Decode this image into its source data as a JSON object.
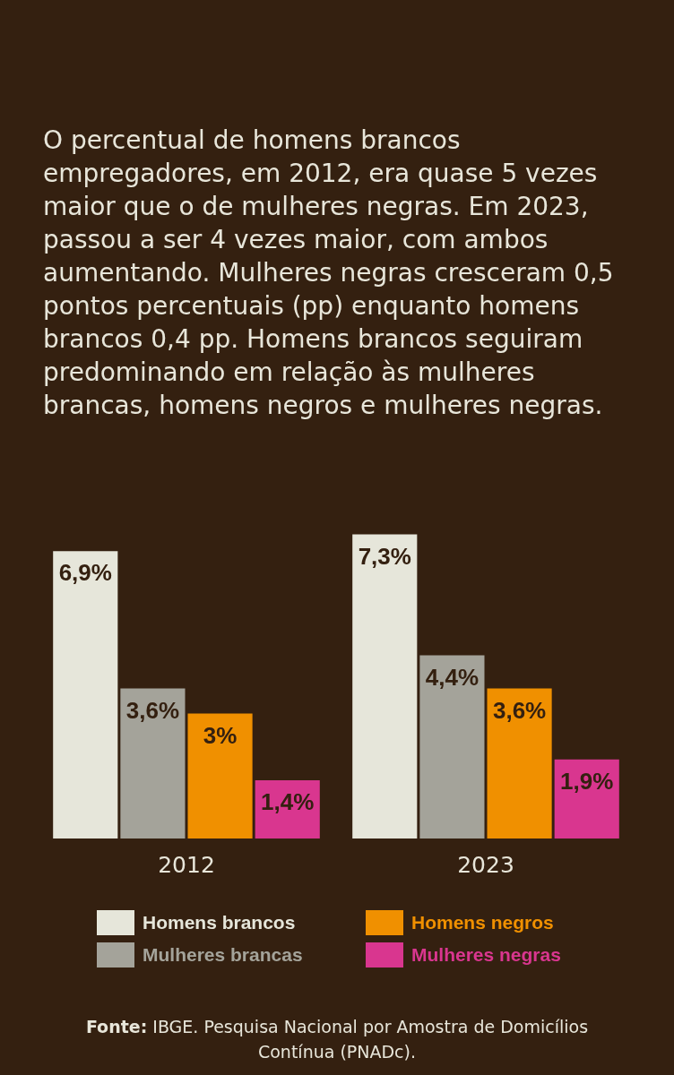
{
  "chart_data": {
    "type": "bar",
    "title": "O percentual de homens brancos empregadores, em 2012, era quase 5 vezes maior que o de mulheres negras. Em 2023, passou a ser 4 vezes maior, com ambos aumentando. Mulheres negras cresceram 0,5 pontos percentuais (pp) enquanto homens brancos 0,4 pp. Homens brancos seguiram predominando em relação às mulheres brancas, homens negros e mulheres negras.",
    "categories": [
      "2012",
      "2023"
    ],
    "series": [
      {
        "name": "Homens brancos",
        "color": "#e6e6da",
        "values": [
          6.9,
          7.3
        ],
        "value_labels": [
          "6,9%",
          "7,3%"
        ]
      },
      {
        "name": "Mulheres brancas",
        "color": "#a4a39a",
        "values": [
          3.6,
          4.4
        ],
        "value_labels": [
          "3,6%",
          "4,4%"
        ]
      },
      {
        "name": "Homens negros",
        "color": "#f09000",
        "values": [
          3,
          3.6
        ],
        "value_labels": [
          "3%",
          "3,6%"
        ]
      },
      {
        "name": "Mulheres negras",
        "color": "#d9368f",
        "values": [
          1.4,
          1.9
        ],
        "value_labels": [
          "1,4%",
          "1,9%"
        ]
      }
    ],
    "legend": "bottom",
    "annotations": [
      "Fonte: IBGE. Pesquisa Nacional por Amostra de Domicílios Contínua (PNADc)."
    ]
  }
}
